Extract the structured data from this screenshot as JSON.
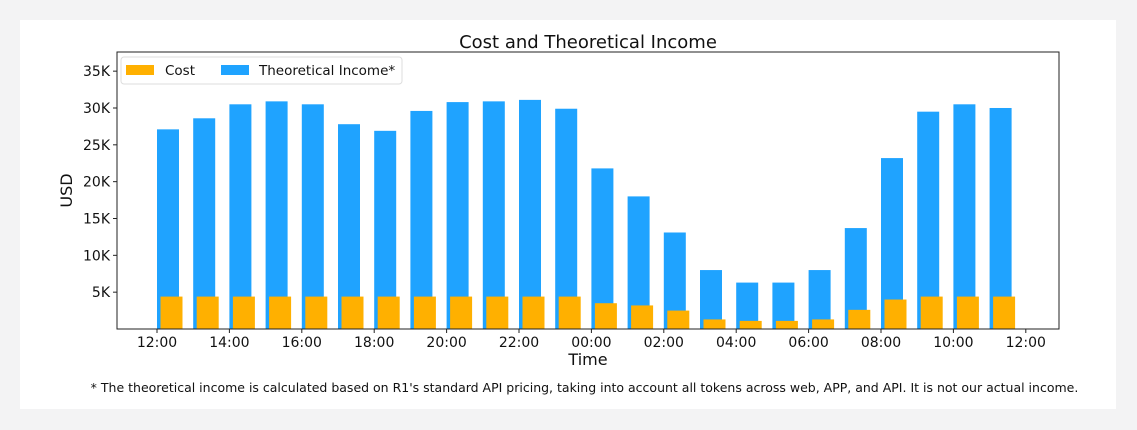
{
  "chart_data": {
    "type": "bar",
    "title": "Cost and Theoretical Income",
    "xlabel": "Time",
    "ylabel": "USD",
    "ylim": [
      0,
      37600
    ],
    "yticks": [
      5000,
      10000,
      15000,
      20000,
      25000,
      30000,
      35000
    ],
    "ytick_labels": [
      "5K",
      "10K",
      "15K",
      "20K",
      "25K",
      "30K",
      "35K"
    ],
    "xtick_labels": [
      "12:00",
      "14:00",
      "16:00",
      "18:00",
      "20:00",
      "22:00",
      "00:00",
      "02:00",
      "04:00",
      "06:00",
      "08:00",
      "10:00",
      "12:00"
    ],
    "categories": [
      "12:00",
      "13:00",
      "14:00",
      "15:00",
      "16:00",
      "17:00",
      "18:00",
      "19:00",
      "20:00",
      "21:00",
      "22:00",
      "23:00",
      "00:00",
      "01:00",
      "02:00",
      "03:00",
      "04:00",
      "05:00",
      "06:00",
      "07:00",
      "08:00",
      "09:00",
      "10:00",
      "11:00"
    ],
    "legend_position": "top-left",
    "grid": false,
    "series": [
      {
        "name": "Cost",
        "color": "#ffb000",
        "values": [
          4400,
          4400,
          4400,
          4400,
          4400,
          4400,
          4400,
          4400,
          4400,
          4400,
          4400,
          4400,
          3500,
          3200,
          2500,
          1300,
          1100,
          1100,
          1300,
          2600,
          4000,
          4400,
          4400,
          4400
        ]
      },
      {
        "name": "Theoretical Income*",
        "color": "#1fa3ff",
        "values": [
          27100,
          28600,
          30500,
          30900,
          30500,
          27800,
          26900,
          29600,
          30800,
          30900,
          31100,
          29900,
          21800,
          18000,
          13100,
          8000,
          6300,
          6300,
          8000,
          13700,
          23200,
          29500,
          30500,
          30000
        ]
      }
    ]
  },
  "footnote": "* The theoretical income is calculated based on R1's standard API pricing, taking into account all tokens across web, APP, and API. It is not our actual income."
}
